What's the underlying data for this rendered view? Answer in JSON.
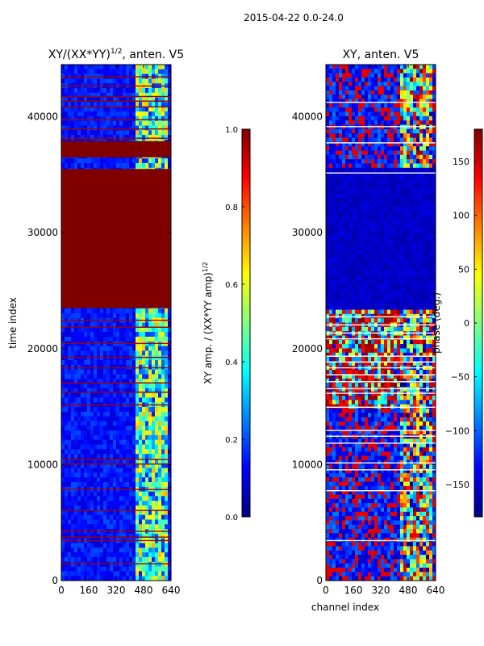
{
  "figure": {
    "suptitle": "2015-04-22 0.0-24.0"
  },
  "chart_data": [
    {
      "type": "heatmap",
      "title_main": "XY/(XX*YY)",
      "title_exp": "1/2",
      "title_tail": ", anten. V5",
      "xlabel": "",
      "ylabel": "time index",
      "xlim": [
        0,
        640
      ],
      "ylim": [
        0,
        44500
      ],
      "xticks": [
        0,
        160,
        320,
        480,
        640
      ],
      "xtick_labels": [
        "0",
        "160",
        "320",
        "480",
        "640"
      ],
      "yticks": [
        0,
        10000,
        20000,
        30000,
        40000
      ],
      "ytick_labels": [
        "0",
        "10000",
        "20000",
        "30000",
        "40000"
      ],
      "colormap": "jet",
      "background_value": 0.05,
      "saturated_bands": [
        {
          "y0": 23500,
          "y1": 35500,
          "value": 1.0,
          "note": "solid saturated block"
        },
        {
          "y0": 36500,
          "y1": 37900,
          "value": 1.0,
          "note": "saturated block"
        }
      ],
      "bright_channel_range": [
        430,
        620
      ],
      "colorbar": {
        "min": 0.0,
        "max": 1.0,
        "ticks": [
          0.0,
          0.2,
          0.4,
          0.6,
          0.8,
          1.0
        ],
        "tick_labels": [
          "0.0",
          "0.2",
          "0.4",
          "0.6",
          "0.8",
          "1.0"
        ],
        "label_main": "XY amp. / (XX*YY amp)",
        "label_exp": "1/2",
        "colors": [
          "#000080",
          "#0000ff",
          "#0080ff",
          "#00ffff",
          "#80ff80",
          "#ffff00",
          "#ff8000",
          "#ff0000",
          "#800000"
        ]
      }
    },
    {
      "type": "heatmap",
      "title": "XY, anten. V5",
      "xlabel": "channel index",
      "ylabel": "",
      "xlim": [
        0,
        640
      ],
      "ylim": [
        0,
        44500
      ],
      "xticks": [
        0,
        160,
        320,
        480,
        640
      ],
      "xtick_labels": [
        "0",
        "160",
        "320",
        "480",
        "640"
      ],
      "yticks": [
        0,
        10000,
        20000,
        30000,
        40000
      ],
      "ytick_labels": [
        "0",
        "10000",
        "20000",
        "30000",
        "40000"
      ],
      "colormap": "jet",
      "blank_band": {
        "y0": 23500,
        "y1": 35500,
        "note": "mostly dark blue"
      },
      "white_gap_rows": [
        3500,
        7800,
        9600,
        10200,
        11900,
        12500,
        13000,
        15000,
        16200,
        16600,
        17200,
        17800,
        18400,
        18900,
        19400,
        20900,
        21400,
        22100,
        22800,
        35200,
        37800,
        39200,
        41300
      ],
      "colorbar": {
        "min": -180,
        "max": 180,
        "ticks": [
          -150,
          -100,
          -50,
          0,
          50,
          100,
          150
        ],
        "tick_labels": [
          "−150",
          "−100",
          "−50",
          "0",
          "50",
          "100",
          "150"
        ],
        "label": "phase (deg.)",
        "colors": [
          "#000080",
          "#0000ff",
          "#0080ff",
          "#00ffff",
          "#80ff80",
          "#ffff00",
          "#ff8000",
          "#ff0000",
          "#800000"
        ]
      }
    }
  ]
}
